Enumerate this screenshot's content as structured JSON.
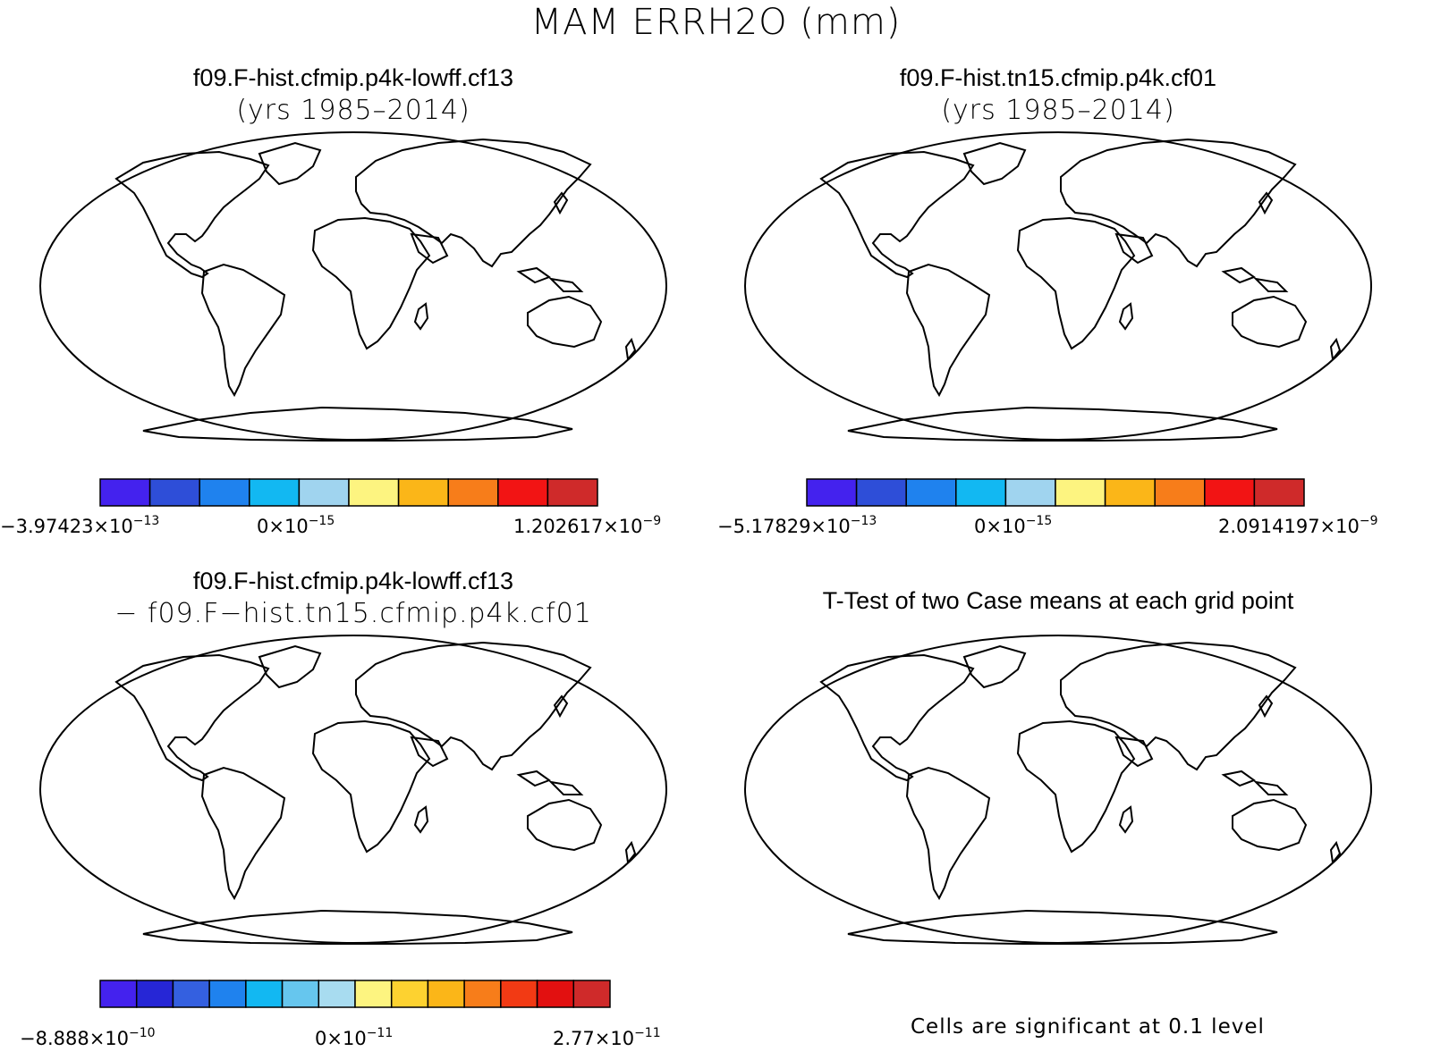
{
  "figure": {
    "title": "MAM ERRH2O (mm)"
  },
  "panels": [
    {
      "id": "case1",
      "title": "f09.F-hist.cfmip.p4k-lowff.cf13",
      "subtitle": "(yrs 1985–2014)",
      "colors": [
        "#4422ee",
        "#2e4ed8",
        "#1f82ee",
        "#12b8f2",
        "#a0d4ef",
        "#fdf480",
        "#fbb618",
        "#f77d1a",
        "#f21414",
        "#cf2a2a"
      ],
      "labels": {
        "min": "−3.97423×10",
        "min_exp": "−13",
        "mid": "0×10",
        "mid_exp": "−15",
        "max": "1.202617×10",
        "max_exp": "−9"
      }
    },
    {
      "id": "case2",
      "title": "f09.F-hist.tn15.cfmip.p4k.cf01",
      "subtitle": "(yrs 1985–2014)",
      "colors": [
        "#4422ee",
        "#2e4ed8",
        "#1f82ee",
        "#12b8f2",
        "#a0d4ef",
        "#fdf480",
        "#fbb618",
        "#f77d1a",
        "#f21414",
        "#cf2a2a"
      ],
      "labels": {
        "min": "−5.17829×10",
        "min_exp": "−13",
        "mid": "0×10",
        "mid_exp": "−15",
        "max": "2.0914197×10",
        "max_exp": "−9"
      }
    },
    {
      "id": "diff",
      "title": "f09.F-hist.cfmip.p4k-lowff.cf13",
      "subtitle": "− f09.F−hist.tn15.cfmip.p4k.cf01",
      "colors": [
        "#4422ee",
        "#2626d6",
        "#3460e0",
        "#1f82ee",
        "#12b8f2",
        "#66c6ee",
        "#a8dcf0",
        "#fdf480",
        "#fdd230",
        "#fbb618",
        "#f77d1a",
        "#f23a14",
        "#e21010",
        "#cf2a2a"
      ],
      "labels": {
        "min": "−8.888×10",
        "min_exp": "−10",
        "mid": "0×10",
        "mid_exp": "−11",
        "max": "2.77×10",
        "max_exp": "−11"
      }
    },
    {
      "id": "ttest",
      "title": "T-Test of two Case means at each grid point",
      "note": "Cells are significant at 0.1 level"
    }
  ]
}
